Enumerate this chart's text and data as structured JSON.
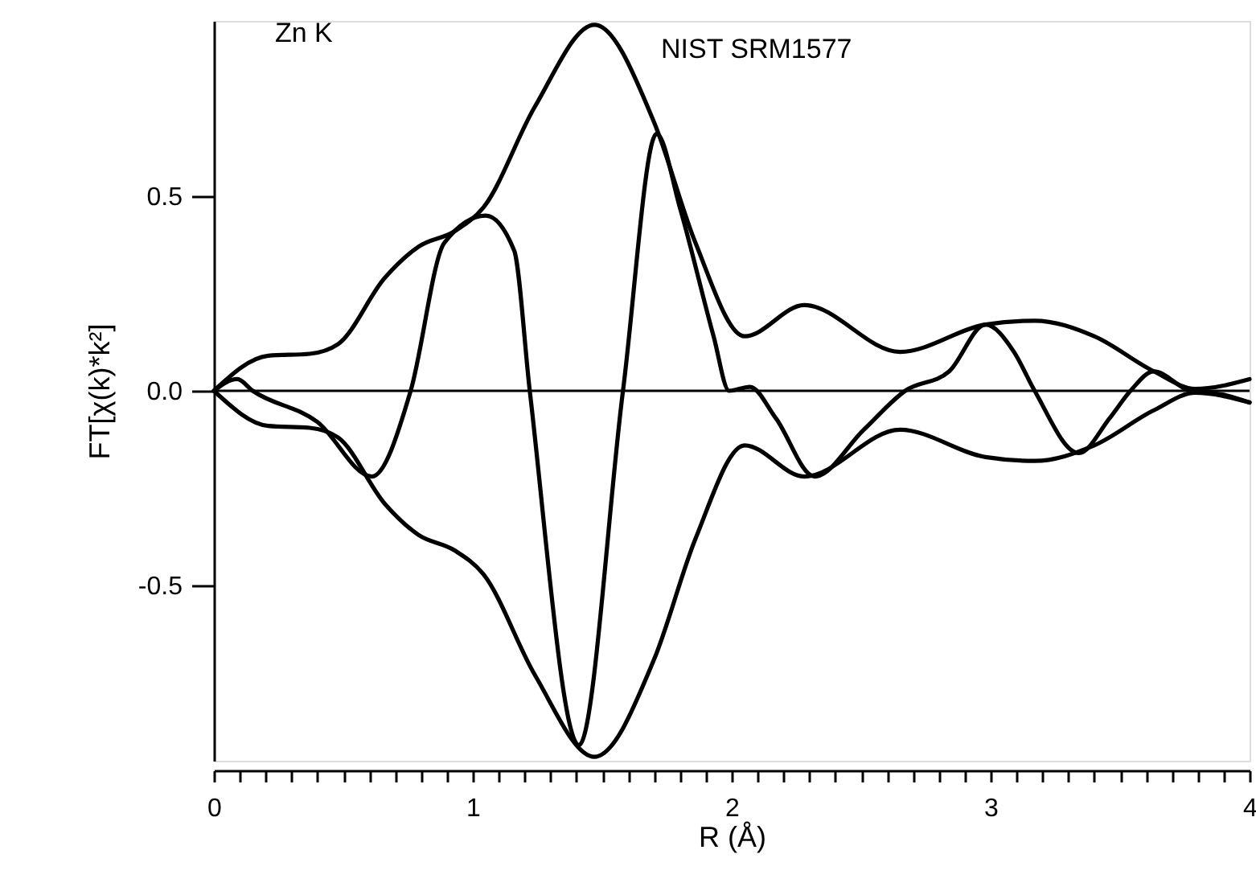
{
  "chart_data": {
    "type": "line",
    "xlabel": "R (Å)",
    "ylabel": "FT[χ(k)*k²]",
    "annotations": [
      "Zn K",
      "NIST SRM1577"
    ],
    "xlim": [
      0,
      4
    ],
    "ylim": [
      -0.95,
      0.95
    ],
    "xticks": [
      0,
      {
        "value": 0.1,
        "label": null
      },
      {
        "value": 0.2,
        "label": null
      },
      {
        "value": 0.3,
        "label": null
      },
      {
        "value": 0.4,
        "label": null
      },
      {
        "value": 0.5,
        "label": null
      },
      {
        "value": 0.6,
        "label": null
      },
      {
        "value": 0.7,
        "label": null
      },
      {
        "value": 0.8,
        "label": null
      },
      {
        "value": 0.9,
        "label": null
      },
      1,
      {
        "value": 1.1,
        "label": null
      },
      {
        "value": 1.2,
        "label": null
      },
      {
        "value": 1.3,
        "label": null
      },
      {
        "value": 1.4,
        "label": null
      },
      {
        "value": 1.5,
        "label": null
      },
      {
        "value": 1.6,
        "label": null
      },
      {
        "value": 1.7,
        "label": null
      },
      {
        "value": 1.8,
        "label": null
      },
      {
        "value": 1.9,
        "label": null
      },
      2,
      {
        "value": 2.1,
        "label": null
      },
      {
        "value": 2.2,
        "label": null
      },
      {
        "value": 2.3,
        "label": null
      },
      {
        "value": 2.4,
        "label": null
      },
      {
        "value": 2.5,
        "label": null
      },
      {
        "value": 2.6,
        "label": null
      },
      {
        "value": 2.7,
        "label": null
      },
      {
        "value": 2.8,
        "label": null
      },
      {
        "value": 2.9,
        "label": null
      },
      3,
      {
        "value": 3.1,
        "label": null
      },
      {
        "value": 3.2,
        "label": null
      },
      {
        "value": 3.3,
        "label": null
      },
      {
        "value": 3.4,
        "label": null
      },
      {
        "value": 3.5,
        "label": null
      },
      {
        "value": 3.6,
        "label": null
      },
      {
        "value": 3.7,
        "label": null
      },
      {
        "value": 3.8,
        "label": null
      },
      {
        "value": 3.9,
        "label": null
      },
      4
    ],
    "yticks": [
      {
        "value": -0.5,
        "label": "-0.5"
      },
      {
        "value": 0,
        "label": "0.0"
      },
      0.5
    ],
    "grid": false,
    "line_style": "solid",
    "ref_lines": [
      {
        "axis": "y",
        "value": 0,
        "color": "#000000"
      }
    ],
    "series": [
      {
        "color": "#000000",
        "x": [
          0,
          0.21,
          0.37,
          0.48,
          0.66,
          0.79,
          0.93,
          1.04,
          1.24,
          1.47,
          1.7,
          1.86,
          2.05,
          2.28,
          2.65,
          2.98,
          3.17,
          3.4,
          3.63,
          3.79,
          4.0
        ],
        "values": [
          0,
          0.09,
          0.095,
          0.12,
          0.29,
          0.37,
          0.41,
          0.47,
          0.73,
          0.94,
          0.69,
          0.38,
          0.14,
          0.22,
          0.1,
          0.17,
          0.18,
          0.14,
          0.05,
          0.005,
          0.03
        ]
      },
      {
        "color": "#000000",
        "x": [
          0,
          0.21,
          0.37,
          0.48,
          0.66,
          0.79,
          0.93,
          1.04,
          1.24,
          1.47,
          1.7,
          1.86,
          2.05,
          2.28,
          2.65,
          2.98,
          3.17,
          3.4,
          3.63,
          3.79,
          4.0
        ],
        "values": [
          0,
          -0.09,
          -0.095,
          -0.12,
          -0.29,
          -0.37,
          -0.41,
          -0.47,
          -0.73,
          -0.94,
          -0.69,
          -0.38,
          -0.14,
          -0.22,
          -0.1,
          -0.17,
          -0.18,
          -0.14,
          -0.05,
          -0.005,
          -0.03
        ]
      },
      {
        "color": "#000000",
        "x": [
          0,
          0.09,
          0.15,
          0.4,
          0.61,
          0.76,
          0.89,
          1.05,
          1.16,
          1.22,
          1.41,
          1.58,
          1.71,
          1.8,
          1.93,
          1.99,
          2.07,
          2.17,
          2.32,
          2.51,
          2.67,
          2.84,
          2.98,
          3.09,
          3.17,
          3.34,
          3.46,
          3.54,
          3.63,
          3.77,
          3.9,
          4.0
        ],
        "values": [
          0,
          0.03,
          0,
          -0.08,
          -0.22,
          0,
          0.38,
          0.45,
          0.36,
          0,
          -0.91,
          0,
          0.66,
          0.47,
          0.14,
          0,
          0.01,
          -0.07,
          -0.22,
          -0.1,
          0,
          0.05,
          0.17,
          0.1,
          0,
          -0.16,
          -0.07,
          0,
          0.05,
          0,
          -0.01,
          -0.03
        ]
      }
    ]
  }
}
